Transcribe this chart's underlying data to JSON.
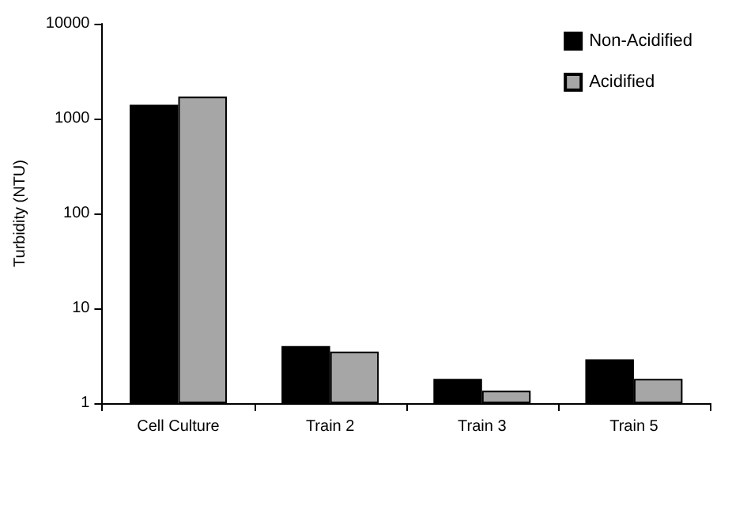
{
  "chart_data": {
    "type": "bar",
    "ylabel": "Turbidity (NTU)",
    "categories": [
      "Cell Culture",
      "Train 2",
      "Train 3",
      "Train 5"
    ],
    "series": [
      {
        "name": "Non-Acidified",
        "color": "#000000",
        "values": [
          1400,
          4.0,
          1.8,
          2.9
        ]
      },
      {
        "name": "Acidified",
        "color": "#a6a6a6",
        "values": [
          1700,
          3.5,
          1.35,
          1.8
        ]
      }
    ],
    "log": true,
    "ylim": [
      1,
      10000
    ],
    "yticks": [
      1,
      10,
      100,
      1000,
      10000
    ],
    "grid": false,
    "legend": "top right"
  }
}
